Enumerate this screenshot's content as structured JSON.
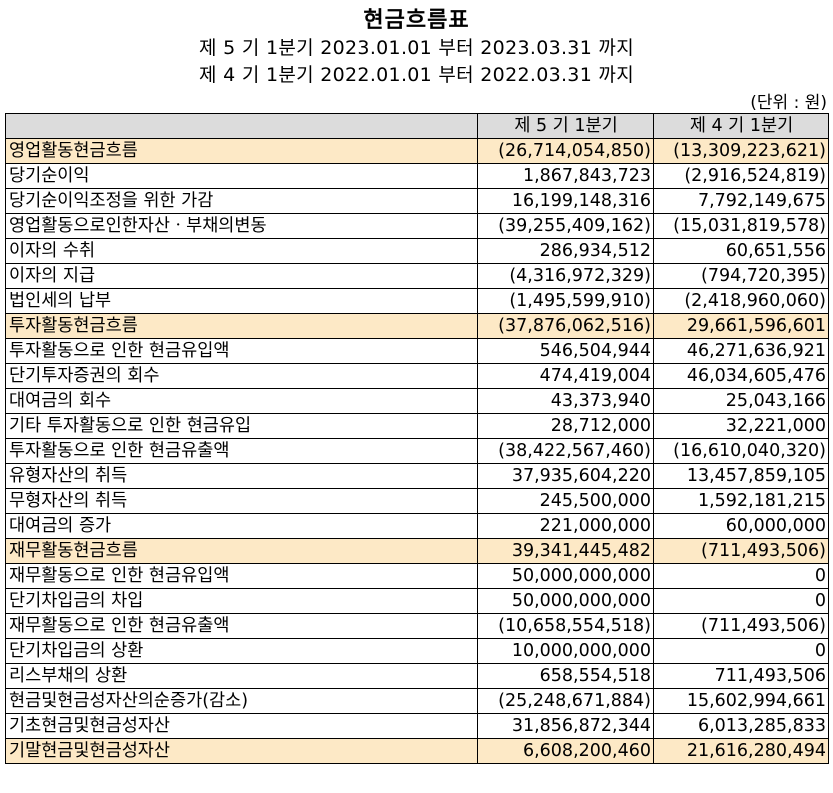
{
  "title": "현금흐름표",
  "period_current": "제 5 기 1분기 2023.01.01 부터 2023.03.31 까지",
  "period_prior": "제 4 기 1분기 2022.01.01 부터 2022.03.31 까지",
  "unit": "(단위 : 원)",
  "columns": [
    "",
    "제 5 기 1분기",
    "제 4 기 1분기"
  ],
  "rows": [
    {
      "label": "영업활동현금흐름",
      "current": "(26,714,054,850)",
      "prior": "(13,309,223,621)"
    },
    {
      "label": "당기순이익",
      "current": "1,867,843,723",
      "prior": "(2,916,524,819)"
    },
    {
      "label": "당기순이익조정을 위한 가감",
      "current": "16,199,148,316",
      "prior": "7,792,149,675"
    },
    {
      "label": "영업활동으로인한자산ㆍ부채의변동",
      "current": "(39,255,409,162)",
      "prior": "(15,031,819,578)"
    },
    {
      "label": "이자의 수취",
      "current": "286,934,512",
      "prior": "60,651,556"
    },
    {
      "label": "이자의 지급",
      "current": "(4,316,972,329)",
      "prior": "(794,720,395)"
    },
    {
      "label": "법인세의 납부",
      "current": "(1,495,599,910)",
      "prior": "(2,418,960,060)"
    },
    {
      "label": "투자활동현금흐름",
      "current": "(37,876,062,516)",
      "prior": "29,661,596,601"
    },
    {
      "label": "투자활동으로 인한 현금유입액",
      "current": "546,504,944",
      "prior": "46,271,636,921"
    },
    {
      "label": "단기투자증권의 회수",
      "current": "474,419,004",
      "prior": "46,034,605,476"
    },
    {
      "label": "대여금의 회수",
      "current": "43,373,940",
      "prior": "25,043,166"
    },
    {
      "label": "기타 투자활동으로 인한 현금유입",
      "current": "28,712,000",
      "prior": "32,221,000"
    },
    {
      "label": "투자활동으로 인한 현금유출액",
      "current": "(38,422,567,460)",
      "prior": "(16,610,040,320)"
    },
    {
      "label": "유형자산의 취득",
      "current": "37,935,604,220",
      "prior": "13,457,859,105"
    },
    {
      "label": "무형자산의 취득",
      "current": "245,500,000",
      "prior": "1,592,181,215"
    },
    {
      "label": "대여금의 증가",
      "current": "221,000,000",
      "prior": "60,000,000"
    },
    {
      "label": "재무활동현금흐름",
      "current": "39,341,445,482",
      "prior": "(711,493,506)"
    },
    {
      "label": "재무활동으로 인한 현금유입액",
      "current": "50,000,000,000",
      "prior": "0"
    },
    {
      "label": "단기차입금의 차입",
      "current": "50,000,000,000",
      "prior": "0"
    },
    {
      "label": "재무활동으로 인한 현금유출액",
      "current": "(10,658,554,518)",
      "prior": "(711,493,506)"
    },
    {
      "label": "단기차입금의 상환",
      "current": "10,000,000,000",
      "prior": "0"
    },
    {
      "label": "리스부채의 상환",
      "current": "658,554,518",
      "prior": "711,493,506"
    },
    {
      "label": "현금및현금성자산의순증가(감소)",
      "current": "(25,248,671,884)",
      "prior": "15,602,994,661"
    },
    {
      "label": "기초현금및현금성자산",
      "current": "31,856,872,344",
      "prior": "6,013,285,833"
    },
    {
      "label": "기말현금및현금성자산",
      "current": "6,608,200,460",
      "prior": "21,616,280,494"
    }
  ]
}
